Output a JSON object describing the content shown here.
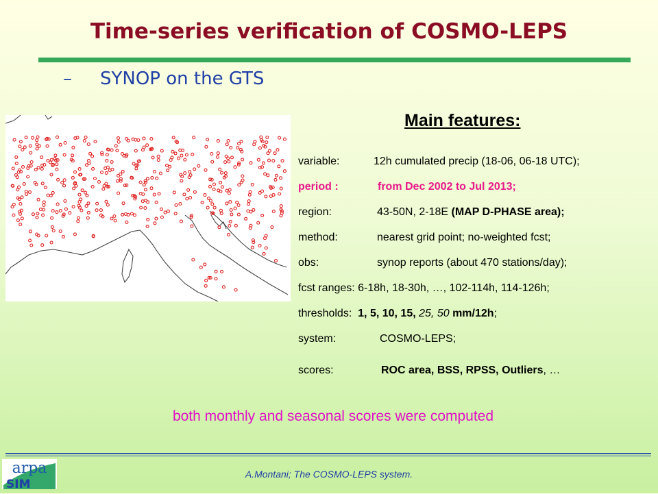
{
  "title": "Time-series verification of COSMO-LEPS",
  "bullet": {
    "dash": "–",
    "text": "SYNOP on the GTS"
  },
  "features": {
    "heading": "Main features:",
    "variable": {
      "label": "variable:",
      "value": "12h cumulated precip (18-06, 06-18 UTC);"
    },
    "period": {
      "label": "period :",
      "value": "from Dec 2002 to Jul 2013;"
    },
    "region": {
      "label": "region:",
      "value": "43-50N, 2-18E",
      "value_bold": "(MAP D-PHASE area);"
    },
    "method": {
      "label": "method:",
      "value": "nearest grid point; no-weighted fcst;"
    },
    "obs": {
      "label": "obs:",
      "value": "synop reports (about 470 stations/day);"
    },
    "fcst_ranges": {
      "label": "fcst ranges:",
      "value": "6-18h, 18-30h, …, 102-114h, 114-126h;"
    },
    "thresholds": {
      "label": "thresholds:",
      "bold": "1, 5, 10, 15,",
      "italic": "25, 50",
      "bold2": "mm/12h",
      "tail": ";"
    },
    "system": {
      "label": "system:",
      "value": "COSMO-LEPS;"
    },
    "scores": {
      "label": "scores:",
      "bold": "ROC area, BSS, RPSS, Outliers",
      "tail": ", …"
    }
  },
  "note": "both monthly and seasonal scores were computed",
  "footer": "A.Montani; The COSMO-LEPS system.",
  "logo": {
    "text1": "arpa",
    "text2": "SIM"
  },
  "colors": {
    "title": "#8b0d24",
    "accent_rule": "#35a85a",
    "bullet": "#1f3fa6",
    "period": "#e8178a",
    "note": "#e010c8",
    "station": "#e02020"
  }
}
